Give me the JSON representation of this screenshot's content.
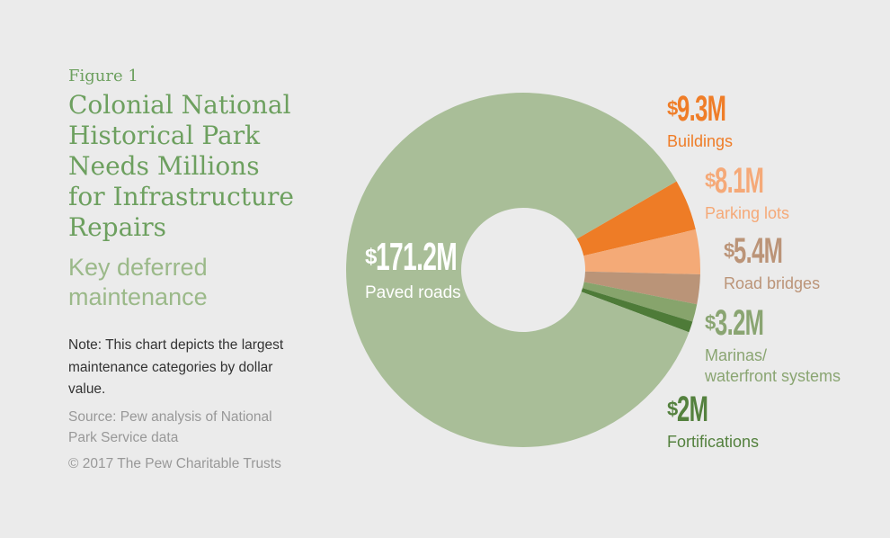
{
  "figure_label": "Figure 1",
  "title": "Colonial National Historical Park Needs Millions for Infrastructure Repairs",
  "title_lines": [
    "Colonial National",
    "Historical Park",
    "Needs Millions",
    "for Infrastructure",
    "Repairs"
  ],
  "subtitle": "Key deferred maintenance",
  "subtitle_lines": [
    "Key deferred",
    "maintenance"
  ],
  "note": "Note: This chart depicts the largest maintenance categories by dollar value.",
  "source": "Source: Pew analysis of National Park Service data",
  "copyright": "© 2017 The Pew Charitable Trusts",
  "colors": {
    "background": "#ebebeb",
    "title_green": "#6da05f",
    "subtitle_green": "#9bb989",
    "note_text": "#333333",
    "muted_text": "#989898"
  },
  "chart_data": {
    "type": "pie",
    "donut": true,
    "title": "Colonial National Historical Park Needs Millions for Infrastructure Repairs",
    "subtitle": "Key deferred maintenance",
    "units": "USD millions",
    "legend_position": "right",
    "start_angle_deg": -30,
    "inner_radius_ratio": 0.35,
    "slices": [
      {
        "label": "Buildings",
        "value": 9.3,
        "currency": "$",
        "amount": "9.3M",
        "color": "#ee7c26",
        "label_color": "#ef7d28"
      },
      {
        "label": "Parking lots",
        "value": 8.1,
        "currency": "$",
        "amount": "8.1M",
        "color": "#f4aa77",
        "label_color": "#f5a978"
      },
      {
        "label": "Road bridges",
        "value": 5.4,
        "currency": "$",
        "amount": "5.4M",
        "color": "#ba9478",
        "label_color": "#bb9478"
      },
      {
        "label": "Marinas/\nwaterfront systems",
        "value": 3.2,
        "currency": "$",
        "amount": "3.2M",
        "color": "#87a46c",
        "label_color": "#8aa572"
      },
      {
        "label": "Fortifications",
        "value": 2,
        "currency": "$",
        "amount": "2M",
        "color": "#4e7b38",
        "label_color": "#54813e"
      },
      {
        "label": "Paved roads",
        "value": 171.2,
        "currency": "$",
        "amount": "171.2M",
        "color": "#a9be98",
        "label_color": "#ffffff"
      }
    ]
  }
}
